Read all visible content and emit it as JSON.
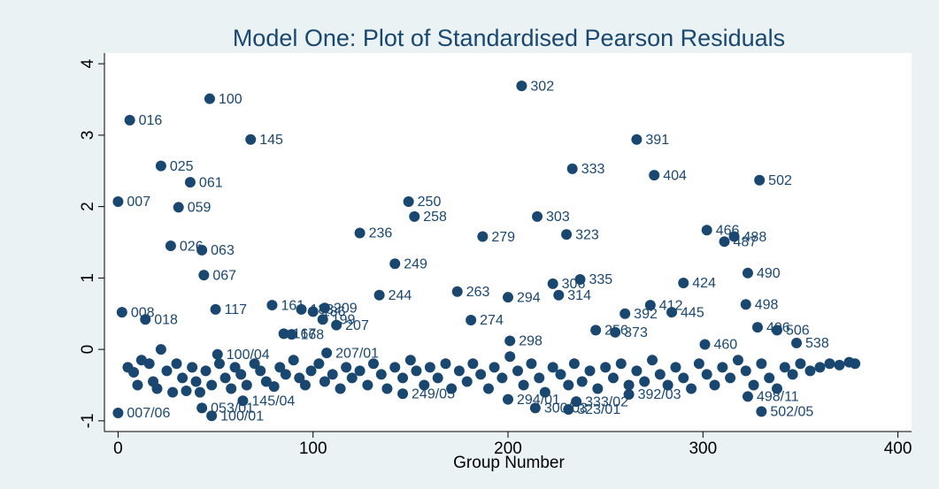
{
  "chart_data": {
    "type": "scatter",
    "title": "Model One: Plot of Standardised Pearson Residuals",
    "xlabel": "Group Number",
    "xlim": [
      -7,
      407
    ],
    "ylim": [
      -1.15,
      4.15
    ],
    "xticks": [
      0,
      100,
      200,
      300,
      400
    ],
    "yticks": [
      -1,
      0,
      1,
      2,
      3,
      4
    ],
    "color": "#1a476f",
    "x": [
      47,
      207,
      6,
      68,
      266,
      22,
      233,
      275,
      37,
      329,
      0,
      149,
      31,
      152,
      215,
      302,
      124,
      187,
      230,
      316,
      311,
      27,
      43,
      142,
      44,
      323,
      237,
      290,
      223,
      174,
      134,
      226,
      200,
      322,
      79,
      273,
      50,
      106,
      94,
      100,
      260,
      284,
      2,
      105,
      14,
      181,
      112,
      328,
      338,
      245,
      85,
      89,
      255,
      201,
      348,
      301,
      0,
      43,
      48,
      64,
      146,
      200,
      214,
      231,
      235,
      262,
      323,
      330,
      51,
      107,
      5,
      8,
      10,
      12,
      16,
      18,
      20,
      22,
      25,
      28,
      30,
      33,
      35,
      38,
      40,
      42,
      45,
      48,
      52,
      55,
      58,
      60,
      63,
      66,
      70,
      73,
      76,
      80,
      83,
      86,
      90,
      93,
      96,
      99,
      103,
      106,
      110,
      114,
      117,
      120,
      124,
      128,
      131,
      135,
      138,
      142,
      146,
      150,
      153,
      157,
      160,
      164,
      168,
      171,
      175,
      179,
      182,
      186,
      190,
      193,
      197,
      201,
      205,
      208,
      212,
      216,
      219,
      223,
      227,
      231,
      234,
      238,
      242,
      246,
      250,
      254,
      258,
      262,
      266,
      270,
      274,
      278,
      282,
      286,
      290,
      294,
      298,
      302,
      306,
      310,
      314,
      318,
      322,
      326,
      330,
      334,
      338,
      342,
      346,
      350,
      355,
      360,
      365,
      370,
      375,
      378
    ],
    "y": [
      3.51,
      3.69,
      3.21,
      2.94,
      2.94,
      2.57,
      2.53,
      2.44,
      2.34,
      2.37,
      2.07,
      2.07,
      1.99,
      1.86,
      1.86,
      1.67,
      1.63,
      1.58,
      1.61,
      1.58,
      1.51,
      1.45,
      1.39,
      1.2,
      1.04,
      1.07,
      0.98,
      0.93,
      0.92,
      0.81,
      0.76,
      0.76,
      0.73,
      0.63,
      0.62,
      0.62,
      0.56,
      0.58,
      0.56,
      0.53,
      0.5,
      0.52,
      0.52,
      0.42,
      0.42,
      0.41,
      0.34,
      0.31,
      0.27,
      0.27,
      0.22,
      0.21,
      0.24,
      0.12,
      0.09,
      0.07,
      -0.89,
      -0.82,
      -0.93,
      -0.72,
      -0.62,
      -0.7,
      -0.82,
      -0.84,
      -0.73,
      -0.63,
      -0.66,
      -0.87,
      -0.07,
      -0.05,
      -0.25,
      -0.32,
      -0.5,
      -0.15,
      -0.2,
      -0.45,
      -0.55,
      0,
      -0.3,
      -0.6,
      -0.2,
      -0.4,
      -0.58,
      -0.25,
      -0.45,
      -0.6,
      -0.3,
      -0.5,
      -0.2,
      -0.4,
      -0.55,
      -0.25,
      -0.35,
      -0.5,
      -0.2,
      -0.3,
      -0.45,
      -0.52,
      -0.25,
      -0.35,
      -0.15,
      -0.4,
      -0.5,
      -0.3,
      -0.2,
      -0.45,
      -0.35,
      -0.55,
      -0.25,
      -0.4,
      -0.3,
      -0.5,
      -0.2,
      -0.35,
      -0.55,
      -0.25,
      -0.4,
      -0.15,
      -0.3,
      -0.5,
      -0.25,
      -0.4,
      -0.2,
      -0.55,
      -0.3,
      -0.45,
      -0.2,
      -0.35,
      -0.55,
      -0.25,
      -0.4,
      -0.1,
      -0.3,
      -0.5,
      -0.2,
      -0.4,
      -0.6,
      -0.25,
      -0.35,
      -0.5,
      -0.2,
      -0.45,
      -0.3,
      -0.55,
      -0.25,
      -0.4,
      -0.2,
      -0.5,
      -0.3,
      -0.45,
      -0.15,
      -0.35,
      -0.5,
      -0.25,
      -0.4,
      -0.55,
      -0.2,
      -0.35,
      -0.5,
      -0.25,
      -0.4,
      -0.15,
      -0.3,
      -0.5,
      -0.2,
      -0.4,
      -0.55,
      -0.25,
      -0.35,
      -0.2,
      -0.3,
      -0.25,
      -0.2,
      -0.22,
      -0.18,
      -0.2
    ],
    "labels": [
      "100",
      "302",
      "016",
      "145",
      "391",
      "025",
      "333",
      "404",
      "061",
      "502",
      "007",
      "250",
      "059",
      "258",
      "303",
      "466",
      "236",
      "279",
      "323",
      "488",
      "487",
      "026",
      "063",
      "249",
      "067",
      "490",
      "335",
      "424",
      "306",
      "263",
      "244",
      "314",
      "294",
      "498",
      "161",
      "412",
      "117",
      "209",
      "183",
      "186",
      "392",
      "445",
      "008",
      "199",
      "018",
      "274",
      "207",
      "496",
      "506",
      "256",
      "167",
      "168",
      "373",
      "298",
      "538",
      "460",
      "007/06",
      "053/01",
      "100/01",
      "145/04",
      "249/05",
      "294/01",
      "300/03",
      "323/01",
      "333/02",
      "392/03",
      "498/11",
      "502/05",
      "100/04",
      "207/01",
      null,
      null,
      null,
      null,
      null,
      null,
      null,
      null,
      null,
      null,
      null,
      null,
      null,
      null,
      null,
      null,
      null,
      null,
      null,
      null,
      null,
      null,
      null,
      null,
      null,
      null,
      null,
      null,
      null,
      null,
      null,
      null,
      null,
      null,
      null,
      null,
      null,
      null,
      null,
      null,
      null,
      null,
      null,
      null,
      null,
      null,
      null,
      null,
      null,
      null,
      null,
      null,
      null,
      null,
      null,
      null,
      null,
      null,
      null,
      null,
      null,
      null,
      null,
      null,
      null,
      null,
      null,
      null,
      null,
      null,
      null,
      null,
      null,
      null,
      null,
      null,
      null,
      null,
      null,
      null,
      null,
      null,
      null,
      null,
      null,
      null,
      null,
      null,
      null,
      null,
      null,
      null,
      null,
      null,
      null,
      null,
      null,
      null,
      null,
      null,
      null,
      null,
      null,
      null,
      null,
      null,
      null,
      null
    ]
  }
}
